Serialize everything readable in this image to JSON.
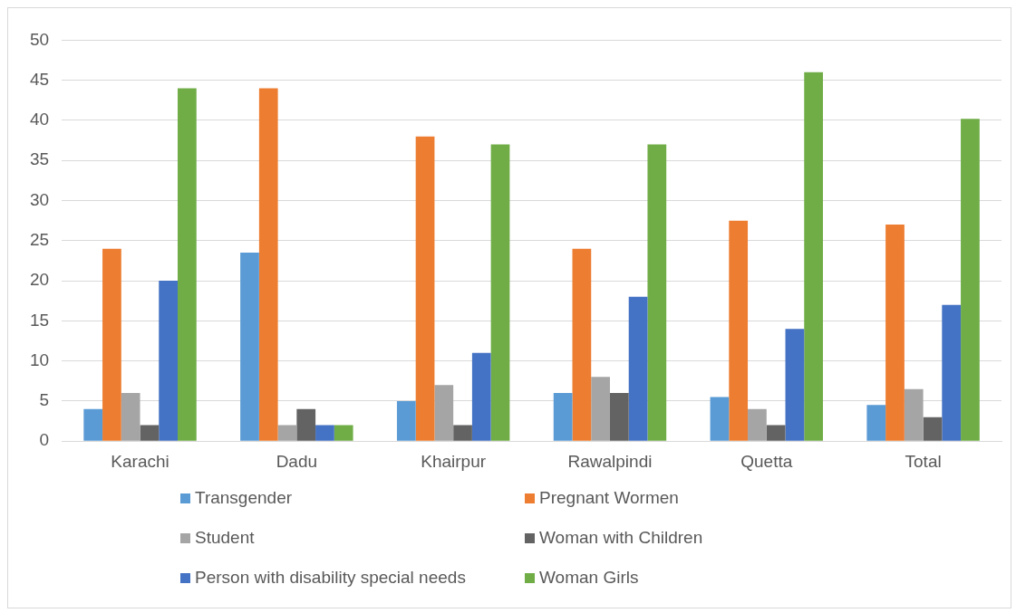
{
  "chart_data": {
    "type": "bar",
    "categories": [
      "Karachi",
      "Dadu",
      "Khairpur",
      "Rawalpindi",
      "Quetta",
      "Total"
    ],
    "series": [
      {
        "name": "Transgender",
        "color": "#5b9bd5",
        "values": [
          4,
          23.5,
          5,
          6,
          5.5,
          4.5
        ]
      },
      {
        "name": "Pregnant Wormen",
        "color": "#ed7d31",
        "values": [
          24,
          44,
          38,
          24,
          27.5,
          27
        ]
      },
      {
        "name": "Student",
        "color": "#a5a5a5",
        "values": [
          6,
          2,
          7,
          8,
          4,
          6.5
        ]
      },
      {
        "name": "Woman with Children",
        "color": "#636363",
        "values": [
          2,
          4,
          2,
          6,
          2,
          3
        ]
      },
      {
        "name": "Person with disability special needs",
        "color": "#4472c4",
        "values": [
          20,
          2,
          11,
          18,
          14,
          17
        ]
      },
      {
        "name": "Woman Girls",
        "color": "#70ad47",
        "values": [
          44,
          2,
          37,
          37,
          46,
          40.2
        ]
      }
    ],
    "ylim": [
      0,
      50
    ],
    "yticks": [
      0,
      5,
      10,
      15,
      20,
      25,
      30,
      35,
      40,
      45,
      50
    ],
    "grid": "y",
    "legend": "bottom"
  }
}
